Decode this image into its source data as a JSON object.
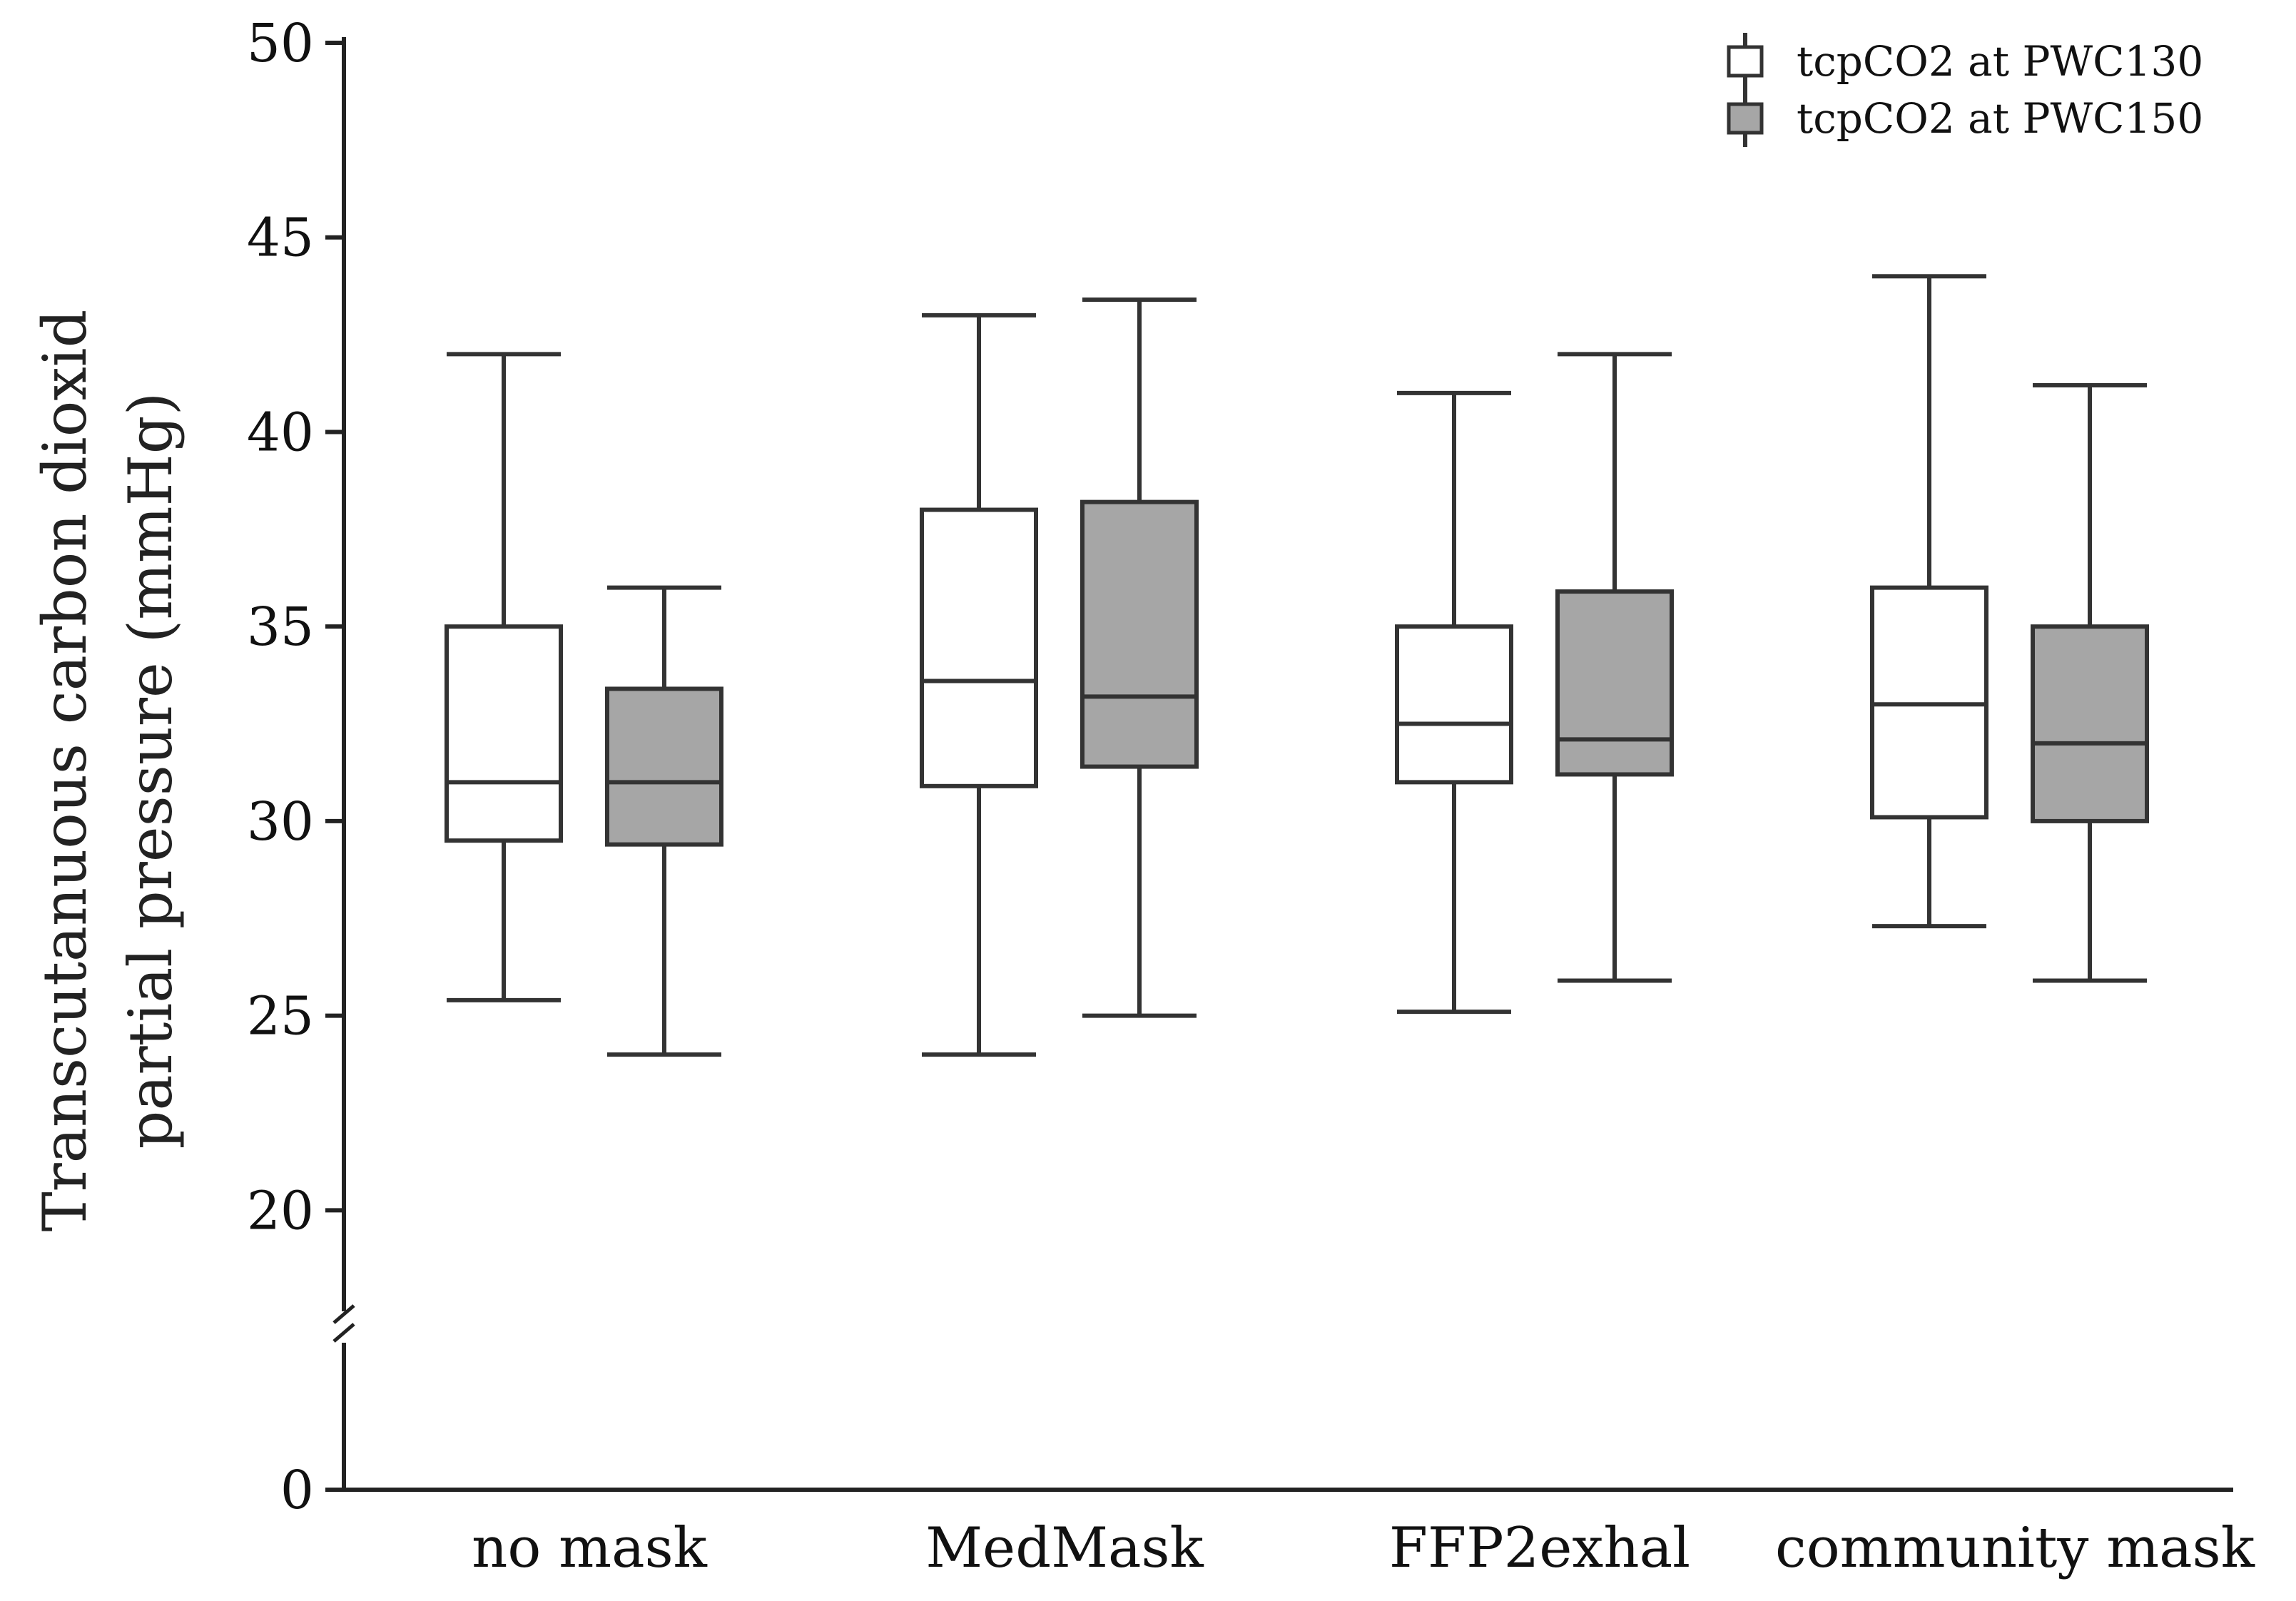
{
  "chart_data": {
    "type": "box",
    "ylabel_lines": [
      "Transcutanuous carbon dioxid",
      "partial pressure (mmHg)"
    ],
    "y_ticks": [
      0,
      20,
      25,
      30,
      35,
      40,
      45,
      50
    ],
    "y_axis_break": [
      0,
      17
    ],
    "ylim": [
      17,
      50
    ],
    "categories": [
      "no mask",
      "MedMask",
      "FFP2exhal",
      "community mask"
    ],
    "legend_position": "top-right",
    "series": [
      {
        "name": "tcpCO2 at PWC130",
        "color": "#ffffff",
        "boxes": [
          {
            "min": 25.4,
            "q1": 29.5,
            "median": 31.0,
            "q3": 35.0,
            "max": 42.0
          },
          {
            "min": 24.0,
            "q1": 30.9,
            "median": 33.6,
            "q3": 38.0,
            "max": 43.0
          },
          {
            "min": 25.1,
            "q1": 31.0,
            "median": 32.5,
            "q3": 35.0,
            "max": 41.0
          },
          {
            "min": 27.3,
            "q1": 30.1,
            "median": 33.0,
            "q3": 36.0,
            "max": 44.0
          }
        ]
      },
      {
        "name": "tcpCO2 at PWC150",
        "color": "#a6a6a6",
        "boxes": [
          {
            "min": 24.0,
            "q1": 29.4,
            "median": 31.0,
            "q3": 33.4,
            "max": 36.0
          },
          {
            "min": 25.0,
            "q1": 31.4,
            "median": 33.2,
            "q3": 38.2,
            "max": 43.4
          },
          {
            "min": 25.9,
            "q1": 31.2,
            "median": 32.1,
            "q3": 35.9,
            "max": 42.0
          },
          {
            "min": 25.9,
            "q1": 30.0,
            "median": 32.0,
            "q3": 35.0,
            "max": 41.2
          }
        ]
      }
    ]
  }
}
